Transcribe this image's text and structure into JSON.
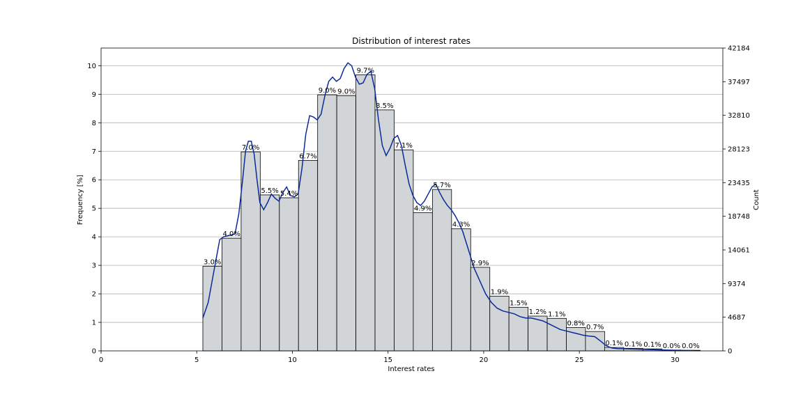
{
  "chart_data": {
    "type": "bar",
    "title": "Distribution of interest rates",
    "xlabel": "Interest rates",
    "ylabel": "Frequency [%]",
    "y2label": "Count",
    "xlim": [
      0,
      32.5
    ],
    "ylim": [
      0,
      10.62
    ],
    "y2lim": [
      0,
      42184
    ],
    "xticks": [
      "0",
      "5",
      "10",
      "15",
      "20",
      "25",
      "30"
    ],
    "xtick_values": [
      0,
      5,
      10,
      15,
      20,
      25,
      30
    ],
    "yticks": [
      "0",
      "1",
      "2",
      "3",
      "4",
      "5",
      "6",
      "7",
      "8",
      "9",
      "10"
    ],
    "ytick_values": [
      0,
      1,
      2,
      3,
      4,
      5,
      6,
      7,
      8,
      9,
      10
    ],
    "y2ticks": [
      "0",
      "4687",
      "9374",
      "14061",
      "18748",
      "23435",
      "28123",
      "32810",
      "37497",
      "42184"
    ],
    "y2tick_values": [
      0,
      4687,
      9374,
      14061,
      18748,
      23435,
      28123,
      32810,
      37497,
      42184
    ],
    "grid": "horizontal",
    "bins": [
      {
        "start": 5.32,
        "end": 6.32,
        "value": 2.97,
        "label": "3.0%"
      },
      {
        "start": 6.32,
        "end": 7.32,
        "value": 3.95,
        "label": "4.0%"
      },
      {
        "start": 7.32,
        "end": 8.32,
        "value": 6.98,
        "label": "7.0%"
      },
      {
        "start": 8.32,
        "end": 9.32,
        "value": 5.47,
        "label": "5.5%"
      },
      {
        "start": 9.32,
        "end": 10.32,
        "value": 5.37,
        "label": "5.4%"
      },
      {
        "start": 10.32,
        "end": 11.32,
        "value": 6.68,
        "label": "6.7%"
      },
      {
        "start": 11.32,
        "end": 12.32,
        "value": 8.98,
        "label": "9.0%"
      },
      {
        "start": 12.32,
        "end": 13.32,
        "value": 8.95,
        "label": "9.0%"
      },
      {
        "start": 13.32,
        "end": 14.32,
        "value": 9.68,
        "label": "9.7%"
      },
      {
        "start": 14.32,
        "end": 15.32,
        "value": 8.45,
        "label": "8.5%"
      },
      {
        "start": 15.32,
        "end": 16.32,
        "value": 7.05,
        "label": "7.1%"
      },
      {
        "start": 16.32,
        "end": 17.32,
        "value": 4.85,
        "label": "4.9%"
      },
      {
        "start": 17.32,
        "end": 18.32,
        "value": 5.66,
        "label": "5.7%"
      },
      {
        "start": 18.32,
        "end": 19.32,
        "value": 4.28,
        "label": "4.3%"
      },
      {
        "start": 19.32,
        "end": 20.32,
        "value": 2.93,
        "label": "2.9%"
      },
      {
        "start": 20.32,
        "end": 21.32,
        "value": 1.92,
        "label": "1.9%"
      },
      {
        "start": 21.32,
        "end": 22.32,
        "value": 1.53,
        "label": "1.5%"
      },
      {
        "start": 22.32,
        "end": 23.32,
        "value": 1.22,
        "label": "1.2%"
      },
      {
        "start": 23.32,
        "end": 24.32,
        "value": 1.14,
        "label": "1.1%"
      },
      {
        "start": 24.32,
        "end": 25.32,
        "value": 0.82,
        "label": "0.8%"
      },
      {
        "start": 25.32,
        "end": 26.32,
        "value": 0.68,
        "label": "0.7%"
      },
      {
        "start": 26.32,
        "end": 27.32,
        "value": 0.12,
        "label": "0.1%"
      },
      {
        "start": 27.32,
        "end": 28.32,
        "value": 0.09,
        "label": "0.1%"
      },
      {
        "start": 28.32,
        "end": 29.32,
        "value": 0.07,
        "label": "0.1%"
      },
      {
        "start": 29.32,
        "end": 30.32,
        "value": 0.03,
        "label": "0.0%"
      },
      {
        "start": 30.32,
        "end": 31.32,
        "value": 0.02,
        "label": "0.0%"
      }
    ],
    "kde": {
      "x": [
        5.32,
        5.6,
        5.9,
        6.2,
        6.4,
        6.7,
        7.0,
        7.2,
        7.4,
        7.55,
        7.7,
        7.85,
        8.0,
        8.15,
        8.3,
        8.5,
        8.7,
        8.9,
        9.1,
        9.3,
        9.5,
        9.7,
        9.9,
        10.1,
        10.3,
        10.5,
        10.7,
        10.9,
        11.1,
        11.3,
        11.5,
        11.7,
        11.9,
        12.1,
        12.3,
        12.5,
        12.7,
        12.9,
        13.1,
        13.3,
        13.5,
        13.7,
        13.9,
        14.1,
        14.3,
        14.5,
        14.7,
        14.9,
        15.1,
        15.3,
        15.5,
        15.7,
        15.9,
        16.1,
        16.3,
        16.5,
        16.7,
        16.9,
        17.1,
        17.3,
        17.5,
        17.7,
        17.9,
        18.1,
        18.3,
        18.5,
        18.7,
        18.9,
        19.2,
        19.5,
        19.8,
        20.1,
        20.4,
        20.7,
        21.0,
        21.3,
        21.6,
        21.9,
        22.2,
        22.5,
        22.8,
        23.1,
        23.4,
        23.7,
        24.0,
        24.3,
        24.6,
        24.9,
        25.2,
        25.5,
        25.8,
        26.1,
        26.4,
        26.7,
        27.0,
        27.5,
        28.0,
        28.5,
        29.0,
        29.5,
        30.0,
        30.5,
        31.0
      ],
      "y": [
        1.15,
        1.7,
        2.8,
        3.9,
        4.0,
        4.05,
        4.1,
        4.8,
        6.0,
        7.0,
        7.35,
        7.35,
        6.9,
        6.0,
        5.2,
        4.95,
        5.2,
        5.5,
        5.35,
        5.25,
        5.55,
        5.75,
        5.45,
        5.4,
        5.5,
        6.4,
        7.6,
        8.25,
        8.2,
        8.1,
        8.3,
        8.95,
        9.45,
        9.6,
        9.45,
        9.55,
        9.9,
        10.1,
        10.0,
        9.6,
        9.35,
        9.4,
        9.7,
        9.8,
        9.2,
        8.1,
        7.2,
        6.85,
        7.1,
        7.45,
        7.55,
        7.2,
        6.5,
        5.85,
        5.45,
        5.2,
        5.1,
        5.25,
        5.5,
        5.75,
        5.85,
        5.55,
        5.3,
        5.1,
        4.95,
        4.75,
        4.5,
        4.2,
        3.55,
        2.9,
        2.45,
        2.0,
        1.7,
        1.5,
        1.4,
        1.35,
        1.3,
        1.2,
        1.15,
        1.15,
        1.1,
        1.05,
        0.95,
        0.85,
        0.75,
        0.7,
        0.65,
        0.6,
        0.55,
        0.52,
        0.5,
        0.35,
        0.18,
        0.1,
        0.08,
        0.07,
        0.06,
        0.05,
        0.04,
        0.03,
        0.02,
        0.015,
        0.01
      ]
    },
    "colors": {
      "bar_fill": "#d1d5d8",
      "bar_edge": "#000000",
      "kde": "#0b2a9a",
      "grid": "#b0b0b0"
    }
  }
}
